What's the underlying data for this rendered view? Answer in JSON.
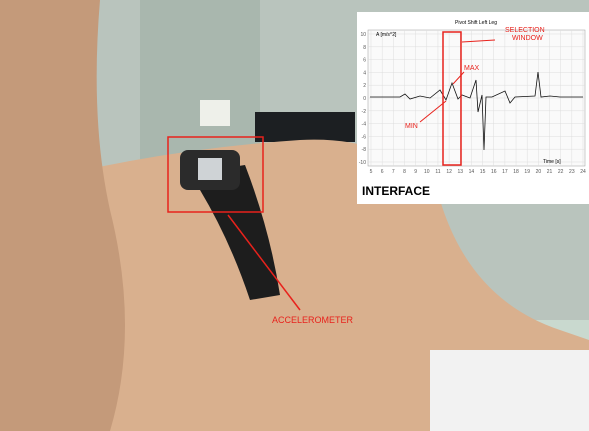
{
  "photo": {
    "label": "ACCELEROMETER"
  },
  "inset": {
    "caption": "INTERFACE",
    "title": "Pivot Shift Left Leg",
    "y_label": "A [m/s^2]",
    "x_label": "Time [s]",
    "selection_label": "SELECTION\nWINDOW",
    "max_label": "MAX",
    "min_label": "MIN",
    "yticks": [
      10,
      8,
      6,
      4,
      2,
      0,
      -2,
      -4,
      -6,
      -8,
      -10
    ],
    "xticks": [
      5,
      6,
      7,
      8,
      9,
      10,
      11,
      12,
      13,
      14,
      15,
      16,
      17,
      18,
      19,
      20,
      21,
      22,
      23,
      24
    ]
  }
}
